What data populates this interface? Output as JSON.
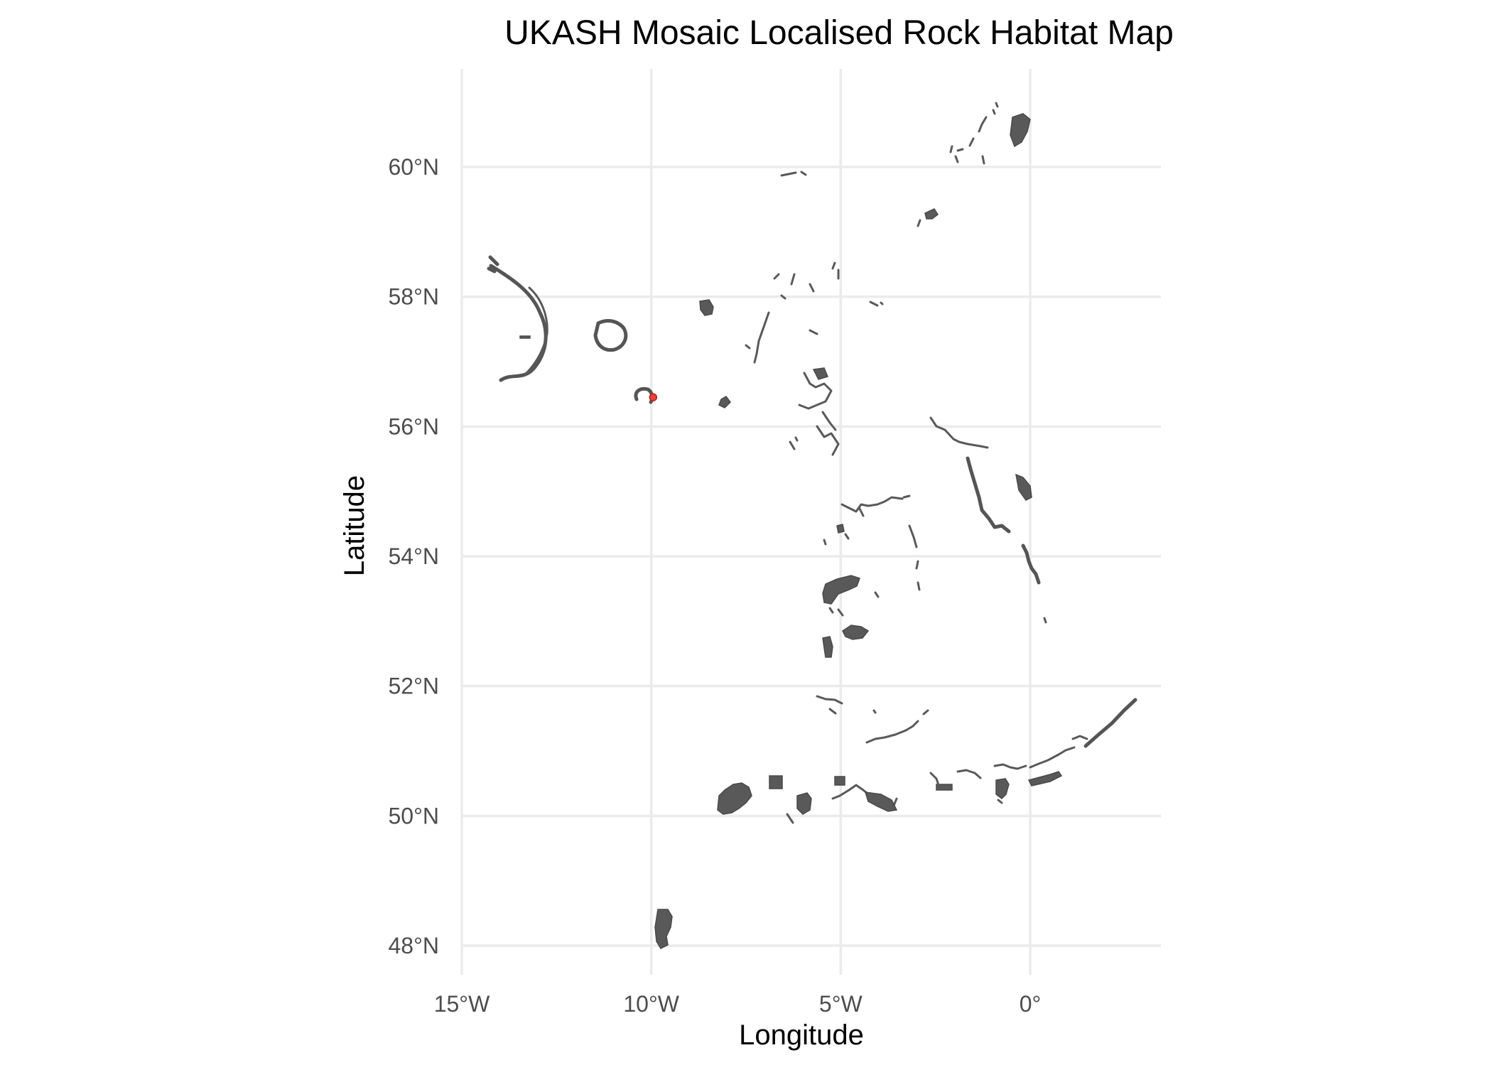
{
  "title": "UKASH Mosaic Localised Rock Habitat Map",
  "axes": {
    "xlabel": "Longitude",
    "ylabel": "Latitude",
    "x_ticks": [
      {
        "value": -15,
        "label": "15°W"
      },
      {
        "value": -10,
        "label": "10°W"
      },
      {
        "value": -5,
        "label": "5°W"
      },
      {
        "value": 0,
        "label": "0°"
      }
    ],
    "y_ticks": [
      {
        "value": 48,
        "label": "48°N"
      },
      {
        "value": 50,
        "label": "50°N"
      },
      {
        "value": 52,
        "label": "52°N"
      },
      {
        "value": 54,
        "label": "54°N"
      },
      {
        "value": 56,
        "label": "56°N"
      },
      {
        "value": 58,
        "label": "58°N"
      },
      {
        "value": 60,
        "label": "60°N"
      }
    ]
  },
  "map": {
    "projection": "geographic (lon/lat)",
    "xlim": [
      -15,
      2.8
    ],
    "ylim": [
      47.6,
      61.5
    ],
    "grid": true,
    "legend": "none",
    "colors": {
      "habitat": "#595959",
      "highlight": "#e8413c",
      "grid": "#ebebeb",
      "background": "#ffffff"
    },
    "highlighted_feature": {
      "lon": -9.95,
      "lat": 56.45
    }
  }
}
